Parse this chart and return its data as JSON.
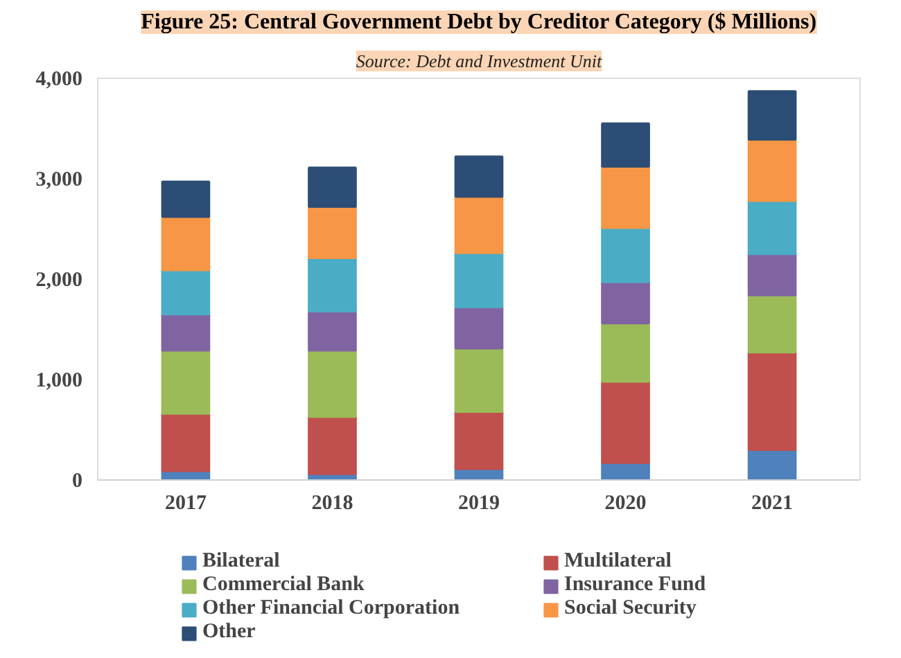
{
  "chart_data": {
    "type": "bar",
    "stacked": true,
    "title": "Figure 25: Central Government Debt by Creditor Category ($ Millions)",
    "subtitle": "Source: Debt and Investment Unit",
    "categories": [
      "2017",
      "2018",
      "2019",
      "2020",
      "2021"
    ],
    "series": [
      {
        "name": "Bilateral",
        "color": "#4f81bd",
        "values": [
          90,
          60,
          110,
          170,
          300
        ]
      },
      {
        "name": "Multilateral",
        "color": "#c0504d",
        "values": [
          570,
          570,
          570,
          810,
          970
        ]
      },
      {
        "name": "Commercial Bank",
        "color": "#9bbb59",
        "values": [
          630,
          660,
          630,
          580,
          570
        ]
      },
      {
        "name": "Insurance Fund",
        "color": "#8064a2",
        "values": [
          360,
          390,
          410,
          410,
          410
        ]
      },
      {
        "name": "Other Financial Corporation",
        "color": "#4bacc6",
        "values": [
          440,
          530,
          540,
          540,
          530
        ]
      },
      {
        "name": "Social Security",
        "color": "#f79646",
        "values": [
          530,
          510,
          560,
          610,
          610
        ]
      },
      {
        "name": "Other",
        "color": "#2c4d75",
        "values": [
          350,
          390,
          400,
          430,
          480
        ]
      }
    ],
    "ylim": [
      0,
      4000
    ],
    "yticks": [
      {
        "value": 0,
        "label": "0"
      },
      {
        "value": 1000,
        "label": "1,000"
      },
      {
        "value": 2000,
        "label": "2,000"
      },
      {
        "value": 3000,
        "label": "3,000"
      },
      {
        "value": 4000,
        "label": "4,000"
      }
    ],
    "grid": false,
    "legend": "bottom"
  }
}
